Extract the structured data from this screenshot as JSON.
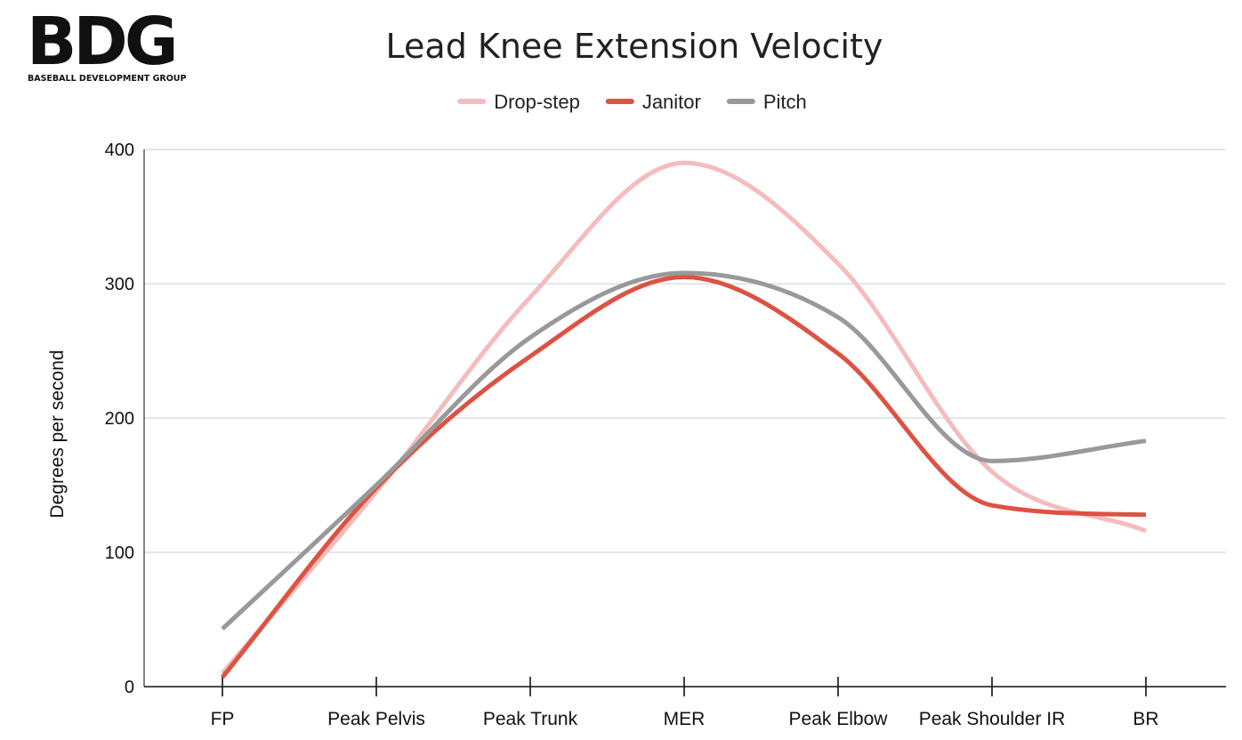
{
  "logo": {
    "letters": "BDG",
    "tagline": "BASEBALL DEVELOPMENT GROUP"
  },
  "chart_data": {
    "type": "line",
    "title": "Lead Knee Extension Velocity",
    "xlabel": "",
    "ylabel": "Degrees per second",
    "categories": [
      "FP",
      "Peak Pelvis",
      "Peak Trunk",
      "MER",
      "Peak Elbow",
      "Peak Shoulder IR",
      "BR"
    ],
    "ylim": [
      0,
      400
    ],
    "yticks": [
      0,
      100,
      200,
      300,
      400
    ],
    "grid": true,
    "legend_position": "top-center",
    "smooth": true,
    "series": [
      {
        "name": "Drop-step",
        "color": "#f4bcbc",
        "values": [
          10,
          145,
          290,
          390,
          315,
          160,
          116
        ]
      },
      {
        "name": "Janitor",
        "color": "#dc5343",
        "values": [
          7,
          148,
          246,
          305,
          248,
          135,
          128
        ]
      },
      {
        "name": "Pitch",
        "color": "#999999",
        "values": [
          43,
          150,
          260,
          308,
          275,
          168,
          183
        ]
      }
    ]
  }
}
